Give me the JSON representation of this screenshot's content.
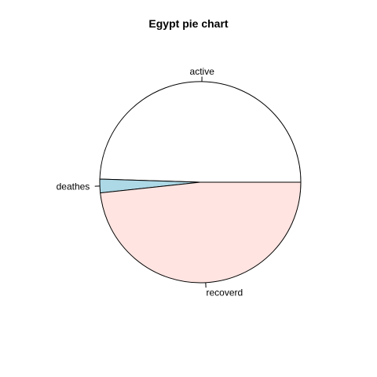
{
  "chart_data": {
    "type": "pie",
    "title": "Egypt pie chart",
    "slices": [
      {
        "label": "active",
        "value": 49.5,
        "color": "#ffffff"
      },
      {
        "label": "deathes",
        "value": 2.2,
        "color": "#add8e6"
      },
      {
        "label": "recoverd",
        "value": 48.3,
        "color": "#ffe4e1"
      }
    ],
    "start_angle_deg": 0,
    "direction": "counterclockwise",
    "border_color": "#000000"
  }
}
